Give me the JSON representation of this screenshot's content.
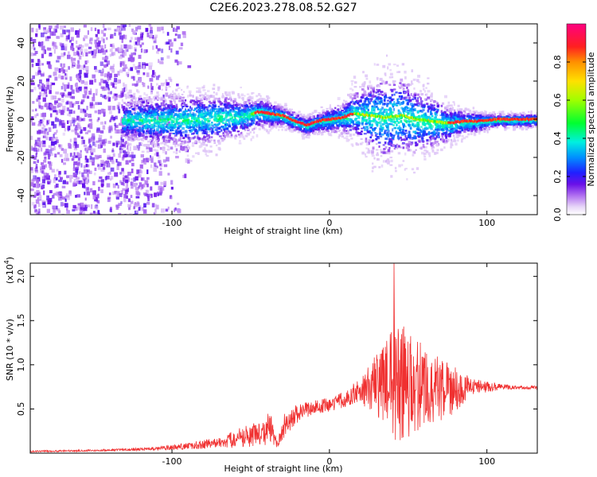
{
  "title": "C2E6.2023.278.08.52.G27",
  "chart_data": [
    {
      "type": "heatmap",
      "xlabel": "Height of straight line (km)",
      "ylabel": "Frequency (Hz)",
      "xlim": [
        -190,
        132
      ],
      "ylim": [
        -50,
        50
      ],
      "x_ticks": [
        "-100",
        "0",
        "100"
      ],
      "y_ticks": [
        "40",
        "20",
        "0",
        "-20",
        "-40"
      ],
      "x_tick_values": [
        -100,
        0,
        100
      ],
      "y_tick_values": [
        40,
        20,
        0,
        -20,
        -40
      ],
      "colorbar": {
        "label": "Normalized spectral amplitude",
        "ticks": [
          "0.0",
          "0.2",
          "0.4",
          "0.6",
          "0.8"
        ],
        "tick_values": [
          0.0,
          0.2,
          0.4,
          0.6,
          0.8
        ],
        "range": [
          0,
          1
        ]
      },
      "ridge": {
        "x": [
          -130,
          -110,
          -90,
          -70,
          -55,
          -45,
          -38,
          -30,
          -22,
          -15,
          -8,
          0,
          8,
          15,
          25,
          35,
          45,
          55,
          65,
          75,
          85,
          95,
          105,
          115,
          125,
          132
        ],
        "y": [
          0,
          0,
          0,
          1,
          2,
          4,
          3,
          2,
          -1,
          -3,
          -1,
          0,
          1,
          3,
          2,
          1,
          2,
          0,
          -1,
          -2,
          -1,
          -1,
          0,
          0,
          0,
          0
        ],
        "width": [
          6,
          8,
          9,
          8,
          6,
          5,
          4,
          3,
          3,
          3,
          3,
          4,
          5,
          8,
          12,
          15,
          14,
          12,
          9,
          6,
          4,
          3,
          2,
          2,
          2,
          2
        ]
      }
    },
    {
      "type": "line",
      "xlabel": "Height of straight line (km)",
      "ylabel": "SNR (10 * v/v)",
      "y_multiplier": "(x10",
      "y_multiplier_exp": "4",
      "y_multiplier_close": ")",
      "xlim": [
        -190,
        132
      ],
      "ylim": [
        0,
        2.15
      ],
      "x_ticks": [
        "-100",
        "0",
        "100"
      ],
      "y_ticks": [
        "0.5",
        "1.0",
        "1.5",
        "2.0"
      ],
      "x_tick_values": [
        -100,
        0,
        100
      ],
      "y_tick_values": [
        0.5,
        1.0,
        1.5,
        2.0
      ],
      "color": "#f03030",
      "envelope": {
        "x": [
          -190,
          -150,
          -110,
          -90,
          -70,
          -55,
          -45,
          -38,
          -33,
          -28,
          -20,
          -10,
          0,
          10,
          20,
          30,
          40,
          45,
          50,
          60,
          70,
          80,
          90,
          100,
          110,
          120,
          132
        ],
        "mean": [
          0.02,
          0.03,
          0.05,
          0.08,
          0.12,
          0.18,
          0.22,
          0.28,
          0.1,
          0.35,
          0.45,
          0.52,
          0.55,
          0.62,
          0.7,
          0.78,
          0.8,
          0.8,
          0.78,
          0.75,
          0.72,
          0.72,
          0.75,
          0.75,
          0.75,
          0.74,
          0.74
        ],
        "amplitude": [
          0.01,
          0.01,
          0.02,
          0.04,
          0.06,
          0.12,
          0.15,
          0.2,
          0.05,
          0.15,
          0.1,
          0.08,
          0.08,
          0.1,
          0.15,
          0.35,
          0.6,
          0.75,
          0.6,
          0.5,
          0.4,
          0.25,
          0.1,
          0.06,
          0.03,
          0.02,
          0.02
        ]
      },
      "peak": {
        "x": 41,
        "y": 2.15
      }
    }
  ]
}
